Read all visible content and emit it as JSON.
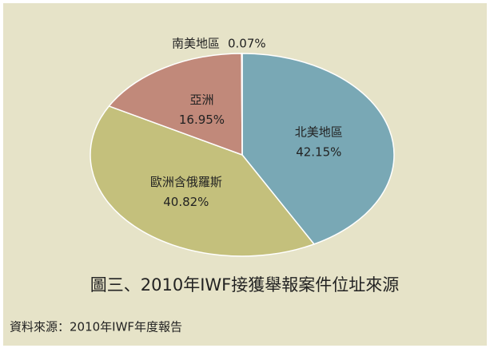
{
  "chart_data": {
    "type": "pie",
    "title": "圖三、2010年IWF接獲舉報案件位址來源",
    "source": "資料來源：2010年IWF年度報告",
    "categories": [
      "北美地區",
      "歐洲含俄羅斯",
      "亞洲",
      "南美地區"
    ],
    "values": [
      42.15,
      40.82,
      16.95,
      0.07
    ],
    "value_labels": [
      "42.15%",
      "40.82%",
      "16.95%",
      "0.07%"
    ],
    "colors": [
      "#79a8b5",
      "#c4c07c",
      "#c1897a",
      "#8f8f6a"
    ]
  }
}
